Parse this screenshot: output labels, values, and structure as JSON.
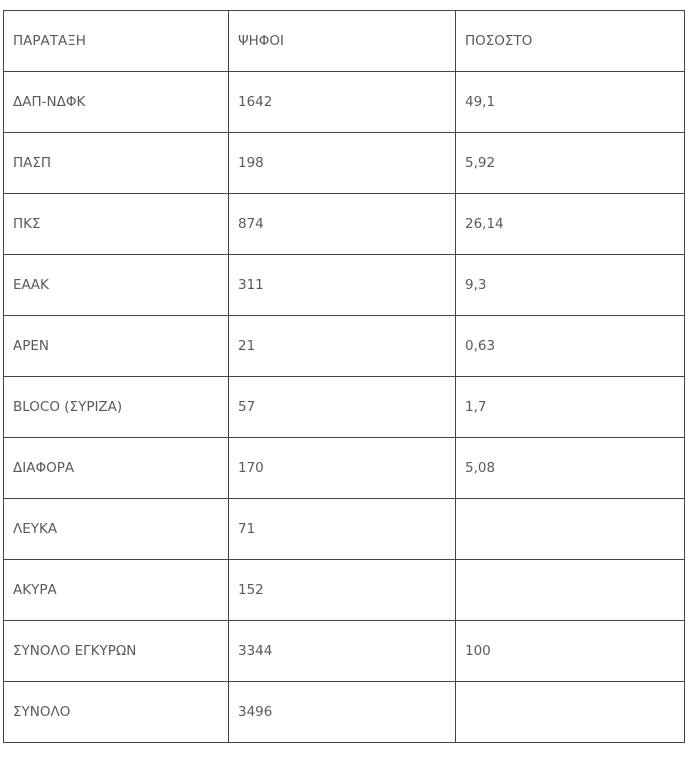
{
  "table": {
    "headers": [
      "ΠΑΡΑΤΑΞΗ",
      "ΨΗΦΟΙ",
      "ΠΟΣΟΣΤΟ"
    ],
    "rows": [
      [
        "ΔΑΠ-ΝΔΦΚ",
        "1642",
        "49,1"
      ],
      [
        "ΠΑΣΠ",
        "198",
        "5,92"
      ],
      [
        "ΠΚΣ",
        "874",
        "26,14"
      ],
      [
        "ΕΑΑΚ",
        "311",
        "9,3"
      ],
      [
        "ΑΡΕΝ",
        "21",
        "0,63"
      ],
      [
        "BLOCO (ΣΥΡΙΖΑ)",
        "57",
        "1,7"
      ],
      [
        "ΔΙΑΦΟΡΑ",
        "170",
        "5,08"
      ],
      [
        "ΛΕΥΚΑ",
        "71",
        ""
      ],
      [
        "ΑΚΥΡΑ",
        "152",
        ""
      ],
      [
        "ΣΥΝΟΛΟ ΕΓΚΥΡΩΝ",
        "3344",
        "100"
      ],
      [
        "ΣΥΝΟΛΟ",
        "3496",
        ""
      ]
    ]
  }
}
